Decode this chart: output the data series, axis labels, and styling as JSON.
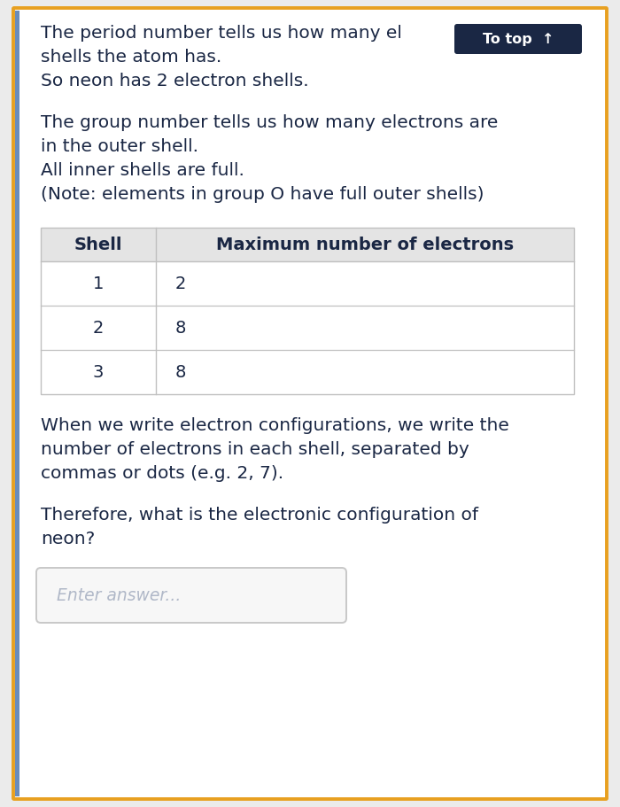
{
  "bg_color": "#ffffff",
  "outer_border_color": "#e8a020",
  "left_accent_color": "#6b8cba",
  "page_bg": "#ebebeb",
  "body_text_color": "#1a2744",
  "table_header_bg": "#e4e4e4",
  "table_header_text": "#1a2744",
  "table_border_color": "#c0c0c0",
  "table_row_text": "#1a2744",
  "input_border_color": "#c8c8c8",
  "input_bg": "#f7f7f7",
  "input_text_color": "#b0b8c8",
  "to_top_bg": "#1a2744",
  "to_top_text": "#ffffff",
  "para1_line1": "The period number tells us how many el",
  "para1_line2": "shells the atom has.",
  "para1_line3": "So neon has 2 electron shells.",
  "para2_line1": "The group number tells us how many electrons are",
  "para2_line2": "in the outer shell.",
  "para2_line3": "All inner shells are full.",
  "para2_line4": "(Note: elements in group O have full outer shells)",
  "table_col1_header": "Shell",
  "table_col2_header": "Maximum number of electrons",
  "table_data": [
    [
      "1",
      "2"
    ],
    [
      "2",
      "8"
    ],
    [
      "3",
      "8"
    ]
  ],
  "para3_line1": "When we write electron configurations, we write the",
  "para3_line2": "number of electrons in each shell, separated by",
  "para3_line3": "commas or dots (e.g. 2, 7).",
  "para4_line1": "Therefore, what is the electronic configuration of",
  "para4_line2": "neon?",
  "input_placeholder": "Enter answer...",
  "fontsize_body": 14.5,
  "fontsize_table_header": 14.0,
  "fontsize_table_body": 14.0,
  "fontsize_input": 13.5,
  "fontsize_totop": 11.5
}
